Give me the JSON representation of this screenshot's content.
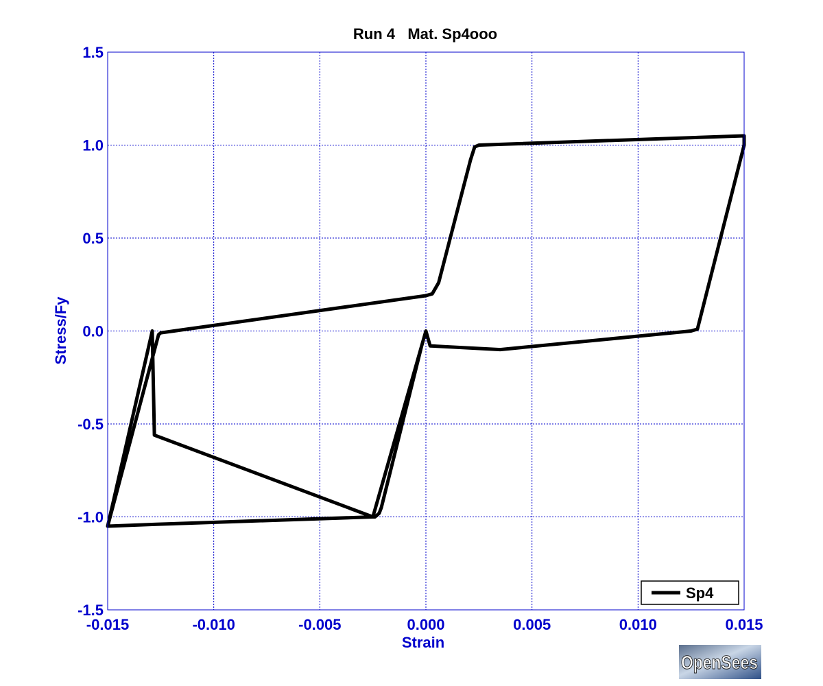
{
  "chart_data": {
    "type": "line",
    "title": "Run 4   Mat. Sp4ooo",
    "xlabel": "Strain",
    "ylabel": "Stress/Fy",
    "xlim": [
      -0.015,
      0.015
    ],
    "ylim": [
      -1.5,
      1.5
    ],
    "xticks": [
      -0.015,
      -0.01,
      -0.005,
      0.0,
      0.005,
      0.01,
      0.015
    ],
    "xtick_labels": [
      "-0.015",
      "-0.010",
      "-0.005",
      "0.000",
      "0.005",
      "0.010",
      "0.015"
    ],
    "yticks": [
      -1.5,
      -1.0,
      -0.5,
      0.0,
      0.5,
      1.0,
      1.5
    ],
    "ytick_labels": [
      "-1.5",
      "-1.0",
      "-0.5",
      "0.0",
      "0.5",
      "1.0",
      "1.5"
    ],
    "grid": true,
    "legend_position": "bottom-right",
    "colors": {
      "series": "#000000",
      "axis_text": "#0000cc",
      "axis_lines": "#0000cc",
      "grid": "#0000cc",
      "title": "#000000"
    },
    "series": [
      {
        "name": "Sp4",
        "x": [
          0.0,
          -0.0025,
          -0.0128,
          -0.0129,
          -0.015,
          -0.015,
          -0.0127,
          -0.0025,
          -0.0024,
          -0.0022,
          -0.0021,
          -0.0002,
          0.0,
          0.0002,
          0.0035,
          0.0125,
          0.0128,
          0.015,
          0.015,
          0.0025,
          0.0023,
          0.0021,
          0.0006,
          0.0003,
          0.0,
          -0.0125,
          -0.0126,
          -0.015
        ],
        "y": [
          -0.0,
          -1.0,
          -0.56,
          0.0,
          -1.05,
          -1.05,
          -1.04,
          -1.0,
          -1.0,
          -0.98,
          -0.95,
          -0.08,
          0.0,
          -0.08,
          -0.1,
          0.0,
          0.01,
          1.0,
          1.05,
          1.0,
          0.99,
          0.92,
          0.26,
          0.2,
          0.19,
          -0.01,
          -0.02,
          -1.05
        ]
      }
    ]
  },
  "legend": {
    "label": "Sp4"
  },
  "logo": {
    "text": "OpenSees"
  }
}
